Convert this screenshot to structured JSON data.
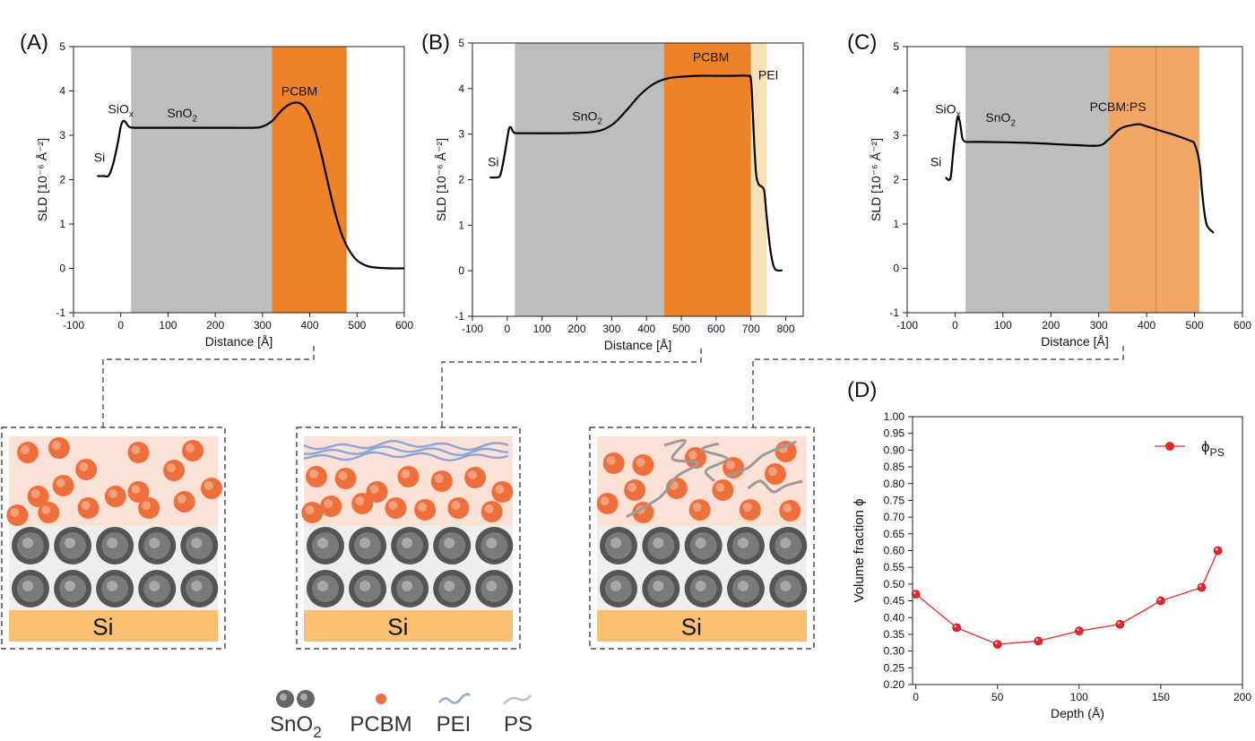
{
  "chart_data": [
    {
      "panel": "(A)",
      "type": "line",
      "xlabel": "Distance [Å]",
      "ylabel": "SLD [10⁻⁶ Å⁻²]",
      "xlim": [
        -100,
        600
      ],
      "ylim": [
        -1,
        5
      ],
      "xticks": [
        -100,
        0,
        100,
        200,
        300,
        400,
        500,
        600
      ],
      "yticks": [
        -1,
        0,
        1,
        2,
        3,
        4,
        5
      ],
      "regions": [
        {
          "label": "SnO2",
          "from": 22,
          "to": 320,
          "color": "#bdbdbd"
        },
        {
          "label": "PCBM",
          "from": 320,
          "to": 478,
          "color": "#ee8228"
        }
      ],
      "annotations": [
        {
          "text": "Si",
          "x": -45,
          "y": 2.4
        },
        {
          "text": "SiOx",
          "x": 0,
          "y": 3.5
        },
        {
          "text": "SnO2",
          "x": 130,
          "y": 3.4
        },
        {
          "text": "PCBM",
          "x": 378,
          "y": 3.9
        }
      ],
      "series": [
        {
          "x": [
            -50,
            -35,
            -25,
            -15,
            -5,
            0,
            5,
            10,
            15,
            20,
            30,
            60,
            120,
            200,
            280,
            300,
            320,
            335,
            350,
            365,
            380,
            395,
            410,
            425,
            440,
            455,
            470,
            485,
            500,
            515,
            530,
            550,
            570,
            600
          ],
          "y": [
            2.08,
            2.08,
            2.1,
            2.4,
            2.9,
            3.2,
            3.32,
            3.3,
            3.22,
            3.18,
            3.17,
            3.17,
            3.17,
            3.17,
            3.17,
            3.2,
            3.32,
            3.5,
            3.65,
            3.73,
            3.72,
            3.55,
            3.15,
            2.55,
            1.85,
            1.2,
            0.7,
            0.38,
            0.18,
            0.08,
            0.03,
            0.01,
            0.0,
            0.0
          ]
        }
      ]
    },
    {
      "panel": "(B)",
      "type": "line",
      "xlabel": "Distance [Å]",
      "ylabel": "SLD [10⁻⁶ Å⁻²]",
      "xlim": [
        -100,
        850
      ],
      "ylim": [
        -1,
        5
      ],
      "xticks": [
        -100,
        0,
        100,
        200,
        300,
        400,
        500,
        600,
        700,
        800
      ],
      "yticks": [
        -1,
        0,
        1,
        2,
        3,
        4,
        5
      ],
      "regions": [
        {
          "label": "SnO2",
          "from": 22,
          "to": 450,
          "color": "#bdbdbd"
        },
        {
          "label": "PCBM",
          "from": 450,
          "to": 700,
          "color": "#ee8228"
        },
        {
          "label": "PEI",
          "from": 700,
          "to": 745,
          "color": "#f8e0b8"
        }
      ],
      "annotations": [
        {
          "text": "Si",
          "x": -40,
          "y": 2.3
        },
        {
          "text": "SnO2",
          "x": 230,
          "y": 3.3
        },
        {
          "text": "PCBM",
          "x": 585,
          "y": 4.6
        },
        {
          "text": "PEI",
          "x": 750,
          "y": 4.2
        }
      ],
      "series": [
        {
          "x": [
            -50,
            -30,
            -20,
            -10,
            0,
            5,
            10,
            15,
            20,
            30,
            60,
            150,
            250,
            300,
            340,
            380,
            420,
            460,
            500,
            550,
            600,
            650,
            690,
            700,
            705,
            710,
            715,
            722,
            730,
            738,
            745,
            755,
            765,
            775,
            790
          ],
          "y": [
            2.05,
            2.05,
            2.1,
            2.45,
            2.9,
            3.12,
            3.15,
            3.08,
            3.03,
            3.02,
            3.02,
            3.02,
            3.05,
            3.2,
            3.5,
            3.85,
            4.1,
            4.22,
            4.26,
            4.28,
            4.28,
            4.28,
            4.28,
            4.2,
            3.5,
            2.7,
            2.1,
            1.9,
            1.85,
            1.75,
            1.2,
            0.5,
            0.1,
            0.01,
            0.01
          ]
        }
      ]
    },
    {
      "panel": "(C)",
      "type": "line",
      "xlabel": "Distance [Å]",
      "ylabel": "SLD [10⁻⁶ Å⁻²]",
      "xlim": [
        -100,
        600
      ],
      "ylim": [
        -1,
        5
      ],
      "xticks": [
        -100,
        0,
        100,
        200,
        300,
        400,
        500,
        600
      ],
      "yticks": [
        -1,
        0,
        1,
        2,
        3,
        4,
        5
      ],
      "regions": [
        {
          "label": "SnO2",
          "from": 22,
          "to": 320,
          "color": "#bdbdbd"
        },
        {
          "label": "PCBM:PS",
          "from": 320,
          "to": 510,
          "color": "#f2a766"
        }
      ],
      "annotations": [
        {
          "text": "Si",
          "x": -40,
          "y": 2.3
        },
        {
          "text": "SiOx",
          "x": -15,
          "y": 3.5
        },
        {
          "text": "SnO2",
          "x": 95,
          "y": 3.3
        },
        {
          "text": "PCBM:PS",
          "x": 340,
          "y": 3.55
        }
      ],
      "series": [
        {
          "x": [
            -20,
            -10,
            -5,
            0,
            5,
            10,
            15,
            20,
            25,
            35,
            60,
            150,
            250,
            300,
            320,
            345,
            370,
            385,
            400,
            430,
            460,
            490,
            500,
            510,
            515,
            520,
            525,
            530,
            540
          ],
          "y": [
            2.05,
            2.02,
            2.5,
            3.0,
            3.4,
            3.3,
            2.95,
            2.86,
            2.85,
            2.85,
            2.85,
            2.83,
            2.78,
            2.77,
            2.9,
            3.15,
            3.23,
            3.25,
            3.2,
            3.1,
            3.0,
            2.88,
            2.8,
            2.4,
            1.8,
            1.3,
            1.0,
            0.9,
            0.8
          ]
        }
      ]
    },
    {
      "panel": "(D)",
      "type": "line",
      "xlabel": "Depth (Å)",
      "ylabel": "Volume fraction ϕ",
      "xlim": [
        -2,
        200
      ],
      "ylim": [
        0.2,
        1.0
      ],
      "xticks": [
        0,
        50,
        100,
        150,
        200
      ],
      "yticks": [
        0.2,
        0.25,
        0.3,
        0.35,
        0.4,
        0.45,
        0.5,
        0.55,
        0.6,
        0.65,
        0.7,
        0.75,
        0.8,
        0.85,
        0.9,
        0.95,
        1.0
      ],
      "legend": "top-right",
      "series": [
        {
          "name": "ϕPS",
          "x": [
            0,
            25,
            50,
            75,
            100,
            125,
            150,
            175,
            185
          ],
          "values": [
            0.47,
            0.37,
            0.32,
            0.33,
            0.36,
            0.38,
            0.45,
            0.49,
            0.6
          ],
          "color": "#e8262b"
        }
      ]
    }
  ],
  "schematics": {
    "si_label": "Si"
  },
  "legend_items": [
    {
      "label": "SnO2",
      "icon": "sno2-particles-icon"
    },
    {
      "label": "PCBM",
      "icon": "pcbm-particle-icon"
    },
    {
      "label": "PEI",
      "icon": "pei-chain-icon"
    },
    {
      "label": "PS",
      "icon": "ps-chain-icon"
    }
  ]
}
